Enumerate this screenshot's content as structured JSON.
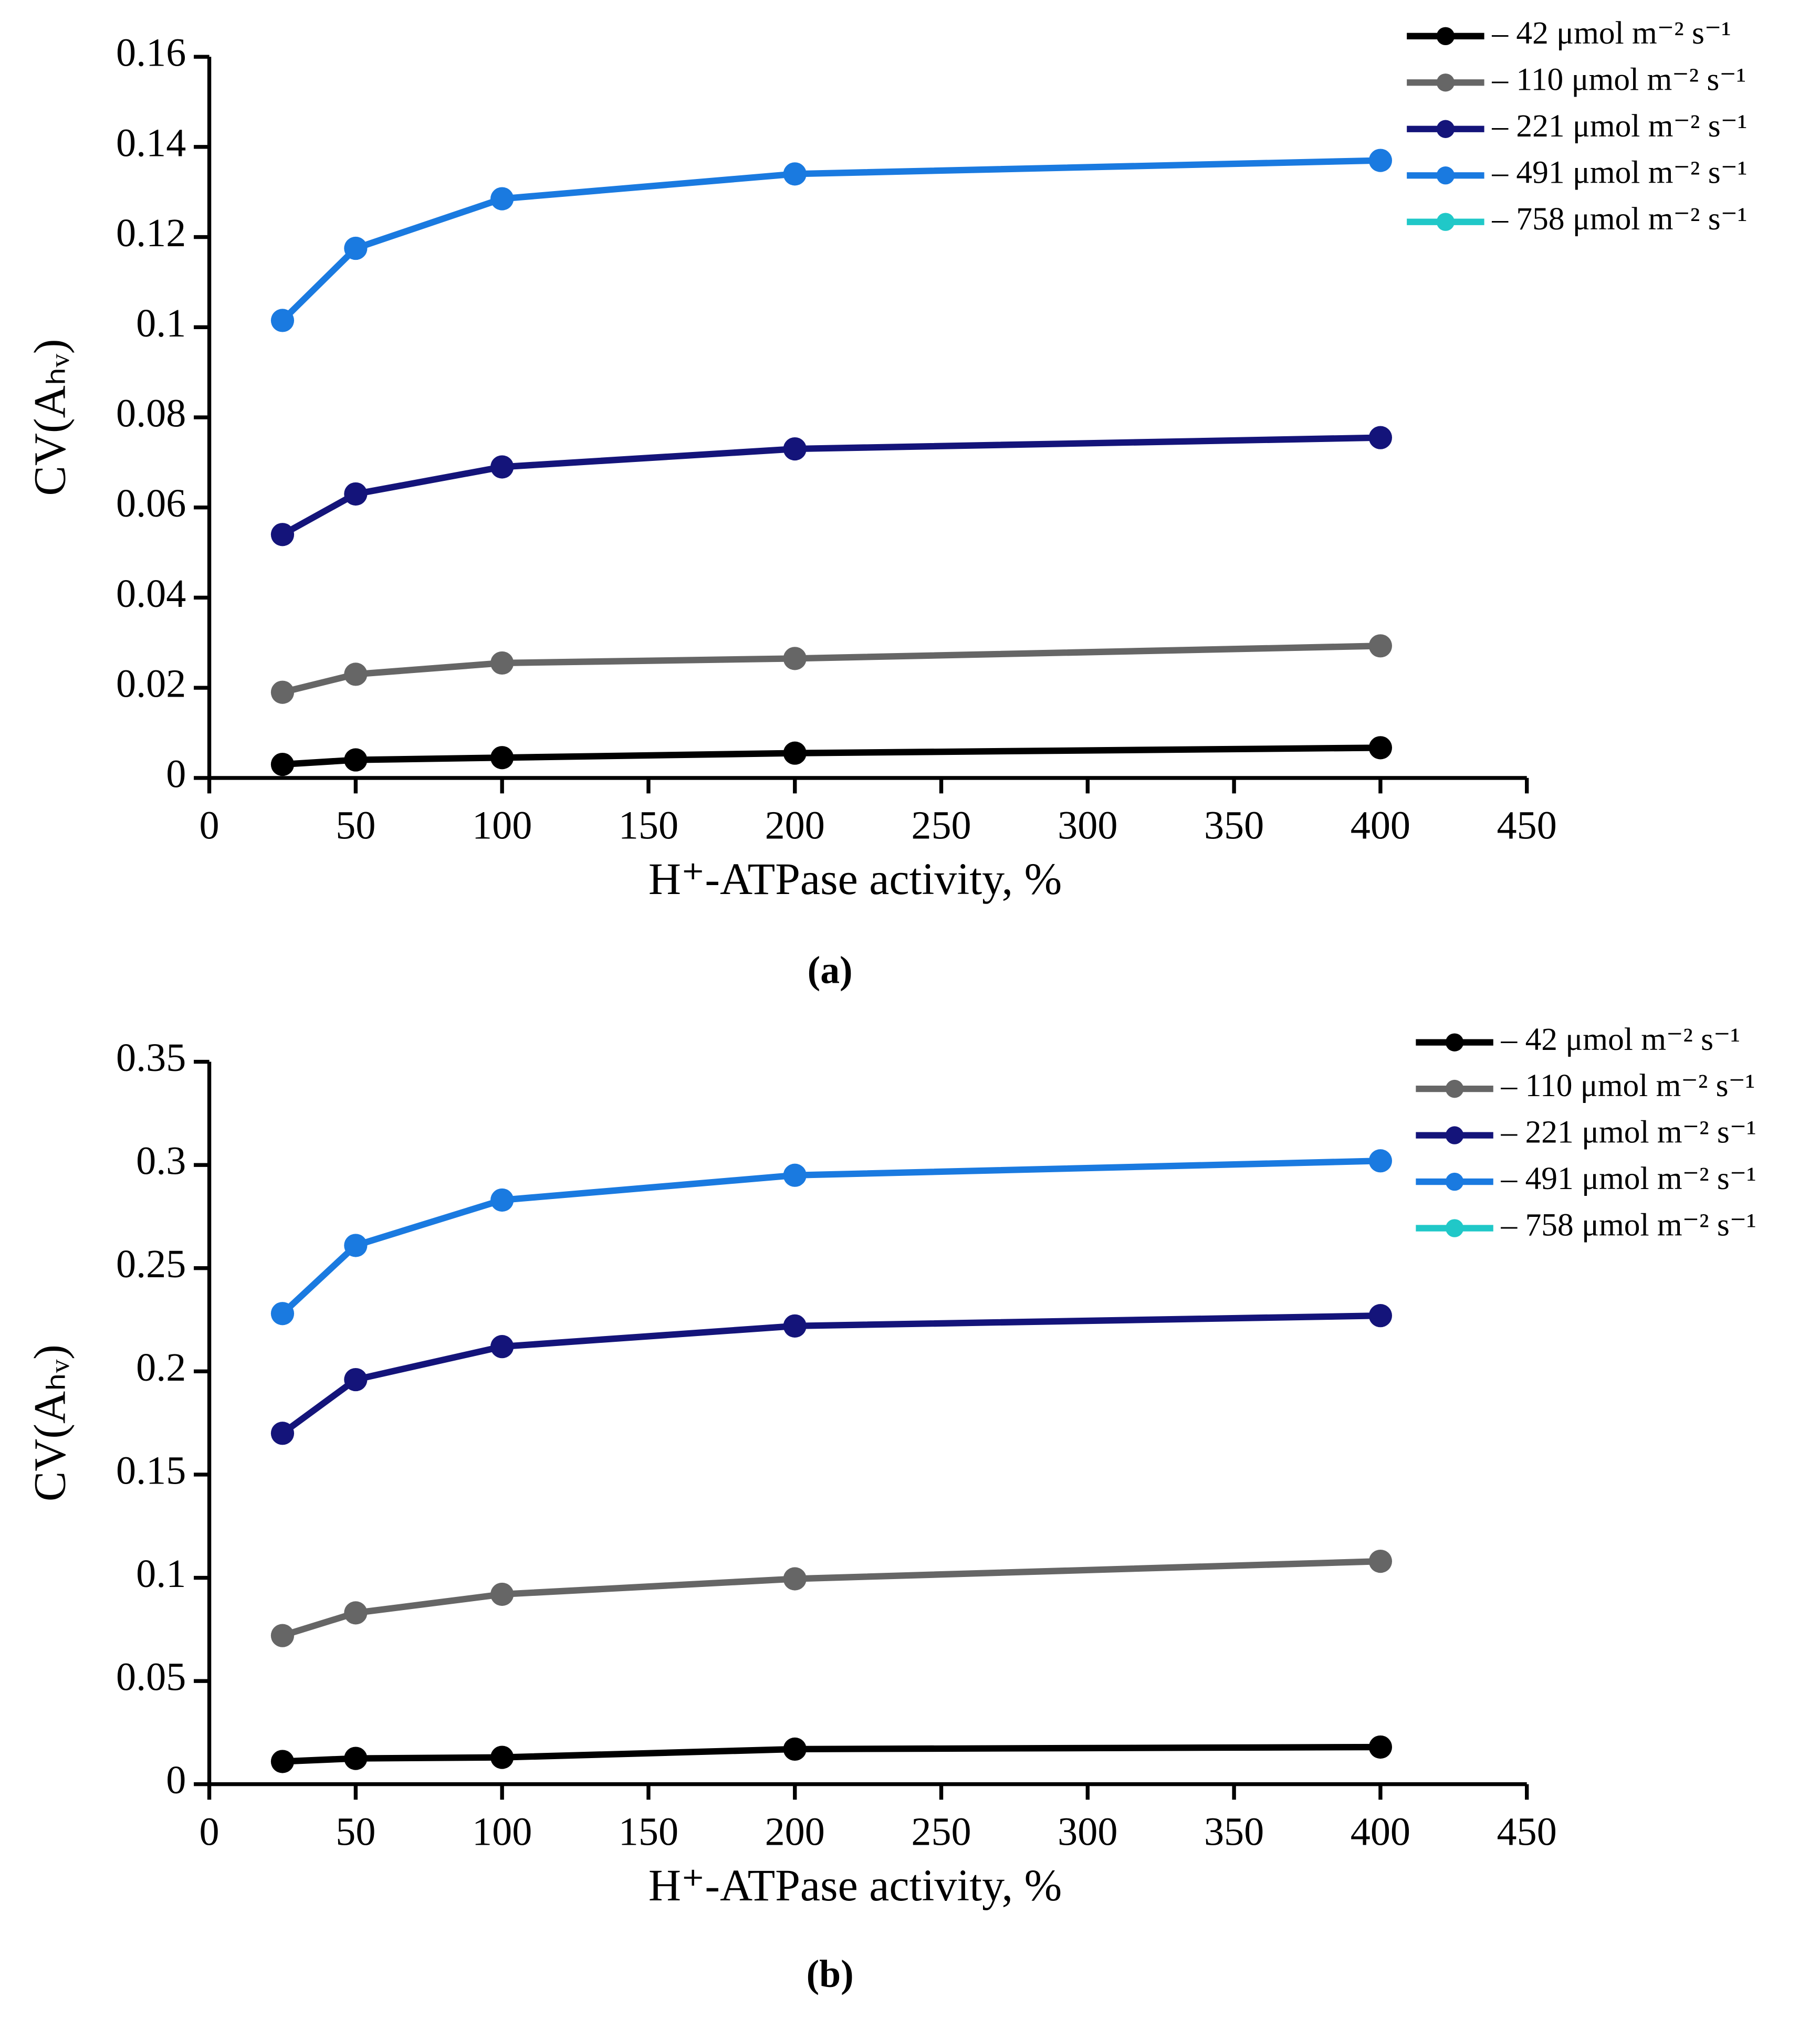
{
  "chart_data": [
    {
      "type": "line",
      "caption": "(a)",
      "xlabel": "H⁺-ATPase activity, %",
      "ylabel": "CV(Aₕᵥ)",
      "x": [
        25,
        50,
        100,
        200,
        400
      ],
      "xlim": [
        0,
        450
      ],
      "xticks": [
        0,
        50,
        100,
        150,
        200,
        250,
        300,
        350,
        400,
        450
      ],
      "ylim": [
        0,
        0.16
      ],
      "yticks": [
        0,
        0.02,
        0.04,
        0.06,
        0.08,
        0.1,
        0.12,
        0.14,
        0.16
      ],
      "legend": "upper right",
      "series": [
        {
          "name": "– 42 μmol m⁻² s⁻¹",
          "color": "#000000",
          "values": [
            0.003,
            0.004,
            0.0045,
            0.0055,
            0.0067
          ]
        },
        {
          "name": "– 110 μmol m⁻² s⁻¹",
          "color": "#666666",
          "values": [
            0.019,
            0.023,
            0.0255,
            0.0265,
            0.0293
          ]
        },
        {
          "name": "– 221 μmol m⁻² s⁻¹",
          "color": "#14147a",
          "values": [
            0.054,
            0.063,
            0.069,
            0.073,
            0.0755
          ]
        },
        {
          "name": "– 491 μmol m⁻² s⁻¹",
          "color": "#1a7ae0",
          "values": [
            0.1015,
            0.1175,
            0.1285,
            0.134,
            0.137
          ]
        },
        {
          "name": "– 758 μmol m⁻² s⁻¹",
          "color": "#20c8c8",
          "values": [
            null,
            null,
            null,
            null,
            null
          ]
        }
      ]
    },
    {
      "type": "line",
      "caption": "(b)",
      "xlabel": "H⁺-ATPase activity, %",
      "ylabel": "CV(Aₕᵥ)",
      "x": [
        25,
        50,
        100,
        200,
        400
      ],
      "xlim": [
        0,
        450
      ],
      "xticks": [
        0,
        50,
        100,
        150,
        200,
        250,
        300,
        350,
        400,
        450
      ],
      "ylim": [
        0,
        0.35
      ],
      "yticks": [
        0,
        0.05,
        0.1,
        0.15,
        0.2,
        0.25,
        0.3,
        0.35
      ],
      "legend": "upper right",
      "series": [
        {
          "name": "– 42 μmol m⁻² s⁻¹",
          "color": "#000000",
          "values": [
            0.011,
            0.0125,
            0.013,
            0.017,
            0.018
          ]
        },
        {
          "name": "– 110 μmol m⁻² s⁻¹",
          "color": "#666666",
          "values": [
            0.072,
            0.083,
            0.092,
            0.0995,
            0.108
          ]
        },
        {
          "name": "– 221 μmol m⁻² s⁻¹",
          "color": "#14147a",
          "values": [
            0.17,
            0.196,
            0.212,
            0.222,
            0.227
          ]
        },
        {
          "name": "– 491 μmol m⁻² s⁻¹",
          "color": "#1a7ae0",
          "values": [
            0.228,
            0.261,
            0.283,
            0.295,
            0.302
          ]
        },
        {
          "name": "– 758 μmol m⁻² s⁻¹",
          "color": "#20c8c8",
          "values": [
            null,
            null,
            null,
            null,
            null
          ]
        }
      ]
    }
  ]
}
